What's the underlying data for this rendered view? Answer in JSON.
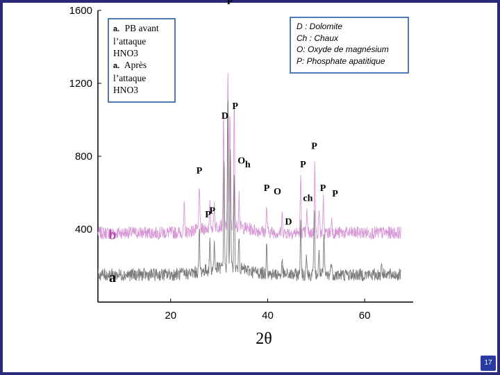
{
  "slide": {
    "page_number": "17"
  },
  "legend_left": {
    "line1_tag": "a.",
    "line1_text": "PB avant l’attaque HNO3",
    "line2_tag": "a.",
    "line2_text": "Après l’attaque HNO3"
  },
  "legend_right": {
    "lines": [
      "D : Dolomite",
      "Ch : Chaux",
      "O: Oxyde de magnésium",
      "P:  Phosphate apatitique"
    ]
  },
  "colors": {
    "trace_a": "#7a7a7a",
    "trace_b": "#d79ad7",
    "trace_b_label": "#b04cb0",
    "frame": "#2a2a7a",
    "legend_border": "#4d7bb5"
  },
  "chart_data": {
    "type": "line",
    "xlabel": "2θ",
    "ylabel": "",
    "xlim": [
      5,
      70
    ],
    "ylim": [
      0,
      1600
    ],
    "x_ticks": [
      "20",
      "40",
      "60"
    ],
    "y_ticks": [
      "1600",
      "1200",
      "800",
      "400"
    ],
    "series": [
      {
        "name": "a",
        "baseline": 150,
        "peaks": [
          [
            22.8,
            150
          ],
          [
            25.9,
            380
          ],
          [
            28.1,
            310
          ],
          [
            29.0,
            290
          ],
          [
            31.0,
            720
          ],
          [
            31.8,
            1080
          ],
          [
            32.3,
            820
          ],
          [
            33.1,
            650
          ],
          [
            34.1,
            340
          ],
          [
            39.8,
            340
          ],
          [
            43.0,
            220
          ],
          [
            46.8,
            460
          ],
          [
            48.0,
            280
          ],
          [
            49.6,
            520
          ],
          [
            50.6,
            280
          ],
          [
            51.6,
            360
          ],
          [
            53.1,
            230
          ],
          [
            63.5,
            220
          ],
          [
            64.3,
            170
          ]
        ]
      },
      {
        "name": "b",
        "baseline": 380,
        "peaks": [
          [
            22.8,
            520
          ],
          [
            25.9,
            640
          ],
          [
            28.1,
            500
          ],
          [
            29.0,
            510
          ],
          [
            30.9,
            960
          ],
          [
            31.8,
            1250
          ],
          [
            32.2,
            990
          ],
          [
            33.1,
            1070
          ],
          [
            34.1,
            560
          ],
          [
            39.8,
            520
          ],
          [
            43.0,
            480
          ],
          [
            46.8,
            690
          ],
          [
            48.1,
            500
          ],
          [
            49.7,
            760
          ],
          [
            50.6,
            520
          ],
          [
            51.5,
            560
          ],
          [
            53.2,
            470
          ]
        ]
      }
    ],
    "annotations": [
      {
        "text": "P",
        "x": 32.2,
        "y": 1635
      },
      {
        "text": "P",
        "x": 33.3,
        "y": 1060
      },
      {
        "text": "D",
        "x": 31.2,
        "y": 1005
      },
      {
        "text": "O",
        "x": 34.6,
        "y": 760
      },
      {
        "text": "h",
        "x": 35.9,
        "y": 740
      },
      {
        "text": "P",
        "x": 25.9,
        "y": 705
      },
      {
        "text": "P",
        "x": 47.3,
        "y": 740
      },
      {
        "text": "P",
        "x": 49.6,
        "y": 840
      },
      {
        "text": "P",
        "x": 39.8,
        "y": 610
      },
      {
        "text": "O",
        "x": 42.0,
        "y": 590
      },
      {
        "text": "ch",
        "x": 48.3,
        "y": 555
      },
      {
        "text": "P",
        "x": 51.4,
        "y": 610
      },
      {
        "text": "P",
        "x": 53.9,
        "y": 580
      },
      {
        "text": "D",
        "x": 44.3,
        "y": 425
      },
      {
        "text": "P",
        "x": 27.7,
        "y": 465
      },
      {
        "text": "P",
        "x": 28.6,
        "y": 485
      },
      {
        "text": "b",
        "x": 8.0,
        "y": 345
      },
      {
        "text": "a",
        "x": 8.0,
        "y": 110
      }
    ]
  }
}
